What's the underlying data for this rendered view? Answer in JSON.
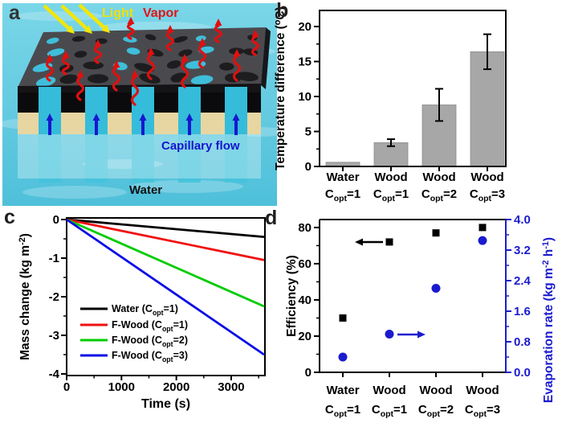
{
  "letters": {
    "a": "a",
    "b": "b",
    "c": "c",
    "d": "d"
  },
  "panel_a": {
    "labels": {
      "light": "Light",
      "vapor": "Vapor",
      "capillary_flow": "Capillary flow",
      "water": "Water"
    },
    "colors": {
      "water_bg_top": "#7ad6e8",
      "water_bg_bottom": "#4fc0da",
      "streak": "#ffffff",
      "slab_top": "#4a4a4e",
      "slab_groove": "#1d1d1f",
      "slab_edge": "#141416",
      "slab_front": "#0b0b0d",
      "slab_side": "#17171a",
      "wood_band": "#e7d6a2",
      "water_channel": "#35bcda",
      "hole_water": "#3fbeda",
      "submerged_column": "#45c3dc",
      "submerged_tint": "#ffffff",
      "light_arrow": "#f2e60a",
      "light_text": "#f2e105",
      "vapor_arrow": "#e01010",
      "vapor_text": "#e11414",
      "capillary_arrow": "#1717cf",
      "capillary_text": "#1515cd",
      "water_text": "#111111"
    }
  },
  "chart_data": [
    {
      "panel": "b",
      "type": "bar",
      "ylabel_parts": [
        {
          "t": "Temperature difference ("
        },
        {
          "sup": "o"
        },
        {
          "t": "C)"
        }
      ],
      "yticks": [
        0,
        5,
        10,
        15,
        20
      ],
      "ylim": [
        0,
        22.3
      ],
      "yminor_step": 2.5,
      "grid": false,
      "categories": [
        {
          "name": "Water",
          "c": "C",
          "sub": "opt",
          "eq": "=1"
        },
        {
          "name": "Wood",
          "c": "C",
          "sub": "opt",
          "eq": "=1"
        },
        {
          "name": "Wood",
          "c": "C",
          "sub": "opt",
          "eq": "=2"
        },
        {
          "name": "Wood",
          "c": "C",
          "sub": "opt",
          "eq": "=3"
        }
      ],
      "values": [
        0.6,
        3.4,
        8.8,
        16.4
      ],
      "errors": [
        0,
        0.5,
        2.3,
        2.5
      ],
      "bar_color": "#a7a7a7",
      "bar_edge_color": "#8d8d8d",
      "axis_color": "#000000"
    },
    {
      "panel": "c",
      "type": "line",
      "xlabel": "Time (s)",
      "ylabel_parts": [
        {
          "t": "Mass change (kg m"
        },
        {
          "sup": "-2"
        },
        {
          "t": ")"
        }
      ],
      "xticks": [
        0,
        1000,
        2000,
        3000
      ],
      "xlim": [
        0,
        3615
      ],
      "xminor_step": 500,
      "yticks": [
        0,
        -1,
        -2,
        -3,
        -4
      ],
      "ylim": [
        0,
        -4
      ],
      "yminor_step": 0.5,
      "grid": false,
      "legend_position": "lower-left-inside",
      "series": [
        {
          "color": "#000000",
          "x": [
            0,
            3600
          ],
          "y": [
            0,
            -0.45
          ],
          "legend_pre": "Water  (C",
          "sub": "opt",
          "legend_post": "=1)"
        },
        {
          "color": "#f01010",
          "x": [
            0,
            3600
          ],
          "y": [
            0,
            -1.05
          ],
          "legend_pre": "F-Wood (C",
          "sub": "opt",
          "legend_post": "=1)"
        },
        {
          "color": "#00cc00",
          "x": [
            0,
            3600
          ],
          "y": [
            0,
            -2.25
          ],
          "legend_pre": "F-Wood (C",
          "sub": "opt",
          "legend_post": "=2)"
        },
        {
          "color": "#0a0ae6",
          "x": [
            0,
            3600
          ],
          "y": [
            0,
            -3.5
          ],
          "legend_pre": "F-Wood (C",
          "sub": "opt",
          "legend_post": "=3)"
        }
      ],
      "axis_color": "#000000"
    },
    {
      "panel": "d",
      "type": "dual_scatter",
      "categories": [
        {
          "name": "Water",
          "c": "C",
          "sub": "opt",
          "eq": "=1"
        },
        {
          "name": "Wood",
          "c": "C",
          "sub": "opt",
          "eq": "=1"
        },
        {
          "name": "Wood",
          "c": "C",
          "sub": "opt",
          "eq": "=2"
        },
        {
          "name": "Wood",
          "c": "C",
          "sub": "opt",
          "eq": "=3"
        }
      ],
      "left_axis": {
        "label": "Efficiency (%)",
        "color": "#000000",
        "ticks": [
          0,
          20,
          40,
          60,
          80
        ],
        "lim": [
          0,
          84.4
        ],
        "minor_step": 10,
        "values": [
          30,
          72,
          77,
          80
        ],
        "marker": "square"
      },
      "right_axis": {
        "label_parts": [
          {
            "t": "Evaporation rate (kg m"
          },
          {
            "sup": "-2"
          },
          {
            "t": " h"
          },
          {
            "sup": "-1"
          },
          {
            "t": ")"
          }
        ],
        "color": "#1b1bce",
        "ticks": [
          "0.0",
          "0.8",
          "1.6",
          "2.4",
          "3.2",
          "4.0"
        ],
        "lim": [
          0,
          4.0
        ],
        "minor_step": 0.4,
        "values": [
          0.4,
          1.0,
          2.2,
          3.45
        ],
        "marker": "circle"
      },
      "arrows": [
        {
          "color": "#000000",
          "dir": "left"
        },
        {
          "color": "#1b1bce",
          "dir": "right"
        }
      ]
    }
  ]
}
